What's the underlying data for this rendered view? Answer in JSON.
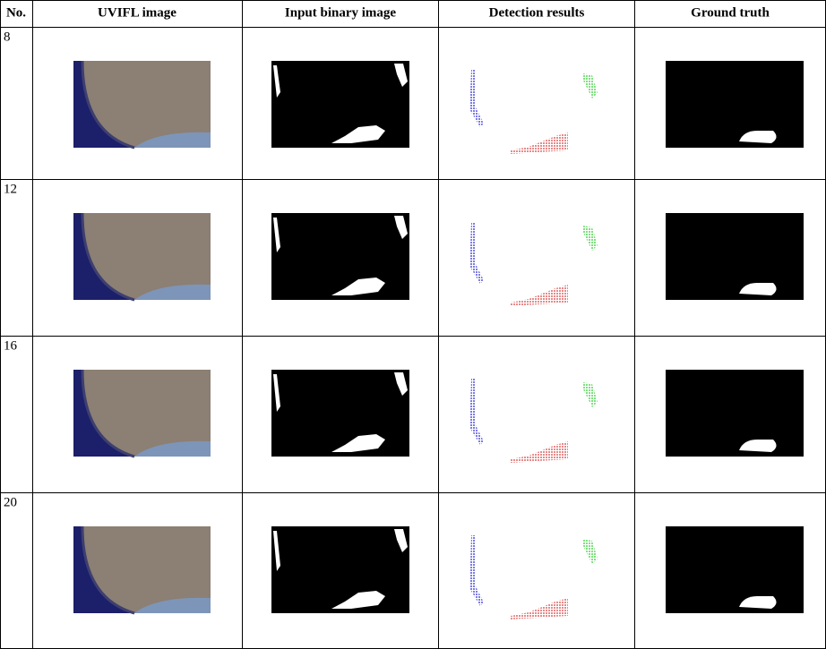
{
  "table": {
    "columns": [
      "No.",
      "UVIFL image",
      "Input binary image",
      "Detection results",
      "Ground truth"
    ],
    "rows": [
      "8",
      "12",
      "16",
      "20"
    ]
  }
}
